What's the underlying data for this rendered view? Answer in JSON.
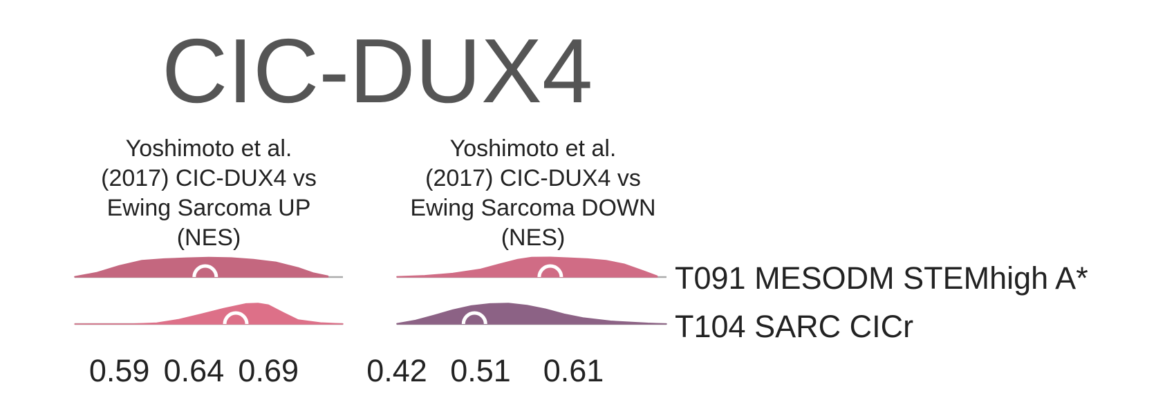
{
  "colors": {
    "title": "#555555",
    "baseline": "#aaaaaa",
    "marker": "#ffffff"
  },
  "chart_data": {
    "type": "ridgeline",
    "title": "CIC-DUX4",
    "rows": [
      {
        "label": "T091 MESODM STEMhigh A*"
      },
      {
        "label": "T104 SARC CICr"
      }
    ],
    "panels": [
      {
        "title_lines": [
          "Yoshimoto et al.",
          "(2017) CIC-DUX4 vs",
          "Ewing Sarcoma UP",
          "(NES)"
        ],
        "xlim": [
          0.56,
          0.74
        ],
        "ticks": [
          0.59,
          0.64,
          0.69
        ],
        "tick_labels": [
          "0.59",
          "0.64",
          "0.69"
        ],
        "series": [
          {
            "row": 0,
            "color": "#c4677f",
            "median": 0.6476,
            "x": [
              0.56,
              0.575,
              0.59,
              0.605,
              0.62,
              0.635,
              0.65,
              0.665,
              0.68,
              0.695,
              0.71,
              0.72,
              0.73
            ],
            "density": [
              0.02,
              0.22,
              0.55,
              0.8,
              0.88,
              0.92,
              0.95,
              0.93,
              0.85,
              0.72,
              0.45,
              0.2,
              0.05
            ]
          },
          {
            "row": 1,
            "color": "#dd7088",
            "median": 0.6681,
            "x": [
              0.56,
              0.6,
              0.615,
              0.63,
              0.645,
              0.66,
              0.675,
              0.683,
              0.69,
              0.7,
              0.71,
              0.725,
              0.74
            ],
            "density": [
              0,
              0.01,
              0.05,
              0.22,
              0.48,
              0.75,
              0.98,
              1.0,
              0.92,
              0.55,
              0.2,
              0.06,
              0.01
            ]
          }
        ]
      },
      {
        "title_lines": [
          "Yoshimoto et al.",
          "(2017) CIC-DUX4 vs",
          "Ewing Sarcoma DOWN",
          "(NES)"
        ],
        "xlim": [
          0.42,
          0.71
        ],
        "ticks": [
          0.42,
          0.51,
          0.61
        ],
        "tick_labels": [
          "0.42",
          "0.51",
          "0.61"
        ],
        "series": [
          {
            "row": 0,
            "color": "#d06c85",
            "median": 0.585,
            "x": [
              0.42,
              0.45,
              0.48,
              0.51,
              0.53,
              0.55,
              0.565,
              0.585,
              0.605,
              0.625,
              0.645,
              0.665,
              0.685,
              0.7
            ],
            "density": [
              0.02,
              0.07,
              0.18,
              0.38,
              0.62,
              0.85,
              0.95,
              0.96,
              0.92,
              0.88,
              0.8,
              0.62,
              0.3,
              0.05
            ]
          },
          {
            "row": 1,
            "color": "#8c6285",
            "median": 0.5035,
            "x": [
              0.42,
              0.44,
              0.46,
              0.48,
              0.5,
              0.52,
              0.54,
              0.56,
              0.58,
              0.6,
              0.62,
              0.65,
              0.69,
              0.71
            ],
            "density": [
              0.02,
              0.18,
              0.42,
              0.68,
              0.88,
              0.98,
              1.0,
              0.9,
              0.72,
              0.48,
              0.3,
              0.14,
              0.04,
              0.01
            ]
          }
        ]
      }
    ]
  }
}
